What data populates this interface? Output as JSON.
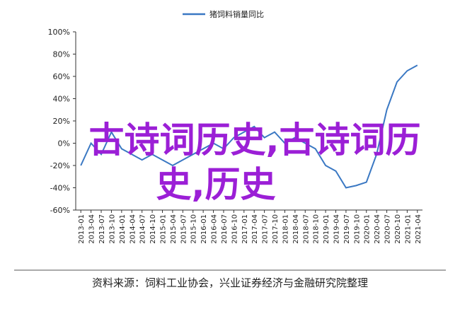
{
  "chart_data": {
    "type": "line",
    "categories": [
      "2013-01",
      "2013-04",
      "2013-07",
      "2013-10",
      "2014-01",
      "2014-04",
      "2014-07",
      "2014-10",
      "2015-01",
      "2015-04",
      "2015-07",
      "2015-10",
      "2016-01",
      "2016-04",
      "2016-07",
      "2016-10",
      "2017-01",
      "2017-04",
      "2017-07",
      "2017-10",
      "2018-01",
      "2018-04",
      "2018-07",
      "2018-10",
      "2019-01",
      "2019-04",
      "2019-07",
      "2019-10",
      "2020-01",
      "2020-04",
      "2020-07",
      "2020-10",
      "2021-01",
      "2021-04"
    ],
    "series": [
      {
        "name": "猪饲料销量同比",
        "color": "#3a78c3",
        "values": [
          -20,
          0,
          -10,
          10,
          -5,
          -10,
          -15,
          -10,
          -15,
          -20,
          -15,
          -10,
          -5,
          0,
          -5,
          5,
          10,
          15,
          5,
          10,
          0,
          5,
          0,
          -5,
          -20,
          -25,
          -40,
          -38,
          -35,
          -10,
          30,
          55,
          65,
          70
        ]
      }
    ],
    "ylim": [
      -60,
      100
    ],
    "yticks": [
      {
        "value": -60,
        "label": "-60%"
      },
      {
        "value": -40,
        "label": "-40%"
      },
      {
        "value": -20,
        "label": "-20%"
      },
      {
        "value": 0,
        "label": "0%"
      },
      {
        "value": 20,
        "label": "20%"
      },
      {
        "value": 40,
        "label": "40%"
      },
      {
        "value": 60,
        "label": "60%"
      },
      {
        "value": 80,
        "label": "80%"
      },
      {
        "value": 100,
        "label": "100%"
      }
    ],
    "legend": "top",
    "source": "资料来源：饲料工业协会，兴业证券经济与金融研究院整理",
    "watermark": [
      "古诗词历史,古诗词历",
      "史,历史"
    ]
  }
}
